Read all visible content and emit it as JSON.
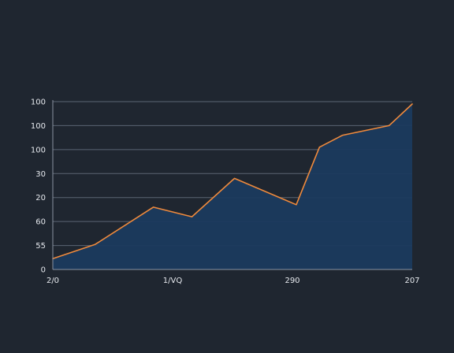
{
  "chart_data": {
    "type": "area",
    "grid": true,
    "colors": {
      "background": "#1f2630",
      "line": "#f08a3c",
      "fill": "#1b3a5e",
      "grid": "#5b6573",
      "text": "#e6e9ee"
    },
    "y_ticks": [
      {
        "label": "100",
        "value": 7
      },
      {
        "label": "100",
        "value": 6
      },
      {
        "label": "100",
        "value": 5
      },
      {
        "label": "30",
        "value": 4
      },
      {
        "label": "20",
        "value": 3
      },
      {
        "label": "60",
        "value": 2
      },
      {
        "label": "55",
        "value": 1
      },
      {
        "label": "0",
        "value": 0
      }
    ],
    "x_ticks": [
      {
        "label": "2/0",
        "value": 0
      },
      {
        "label": "1/VQ",
        "value": 3.1
      },
      {
        "label": "290",
        "value": 6.2
      },
      {
        "label": "207",
        "value": 9.3
      }
    ],
    "xlim": [
      0,
      9.3
    ],
    "ylim": [
      0,
      7
    ],
    "series": [
      {
        "x": [
          0,
          1.1,
          2.6,
          3.6,
          4.7,
          6.3,
          6.9,
          7.5,
          8.7,
          9.3
        ],
        "y": [
          0.45,
          1.05,
          2.6,
          2.2,
          3.8,
          2.7,
          5.1,
          5.6,
          6.0,
          6.9
        ]
      }
    ]
  }
}
